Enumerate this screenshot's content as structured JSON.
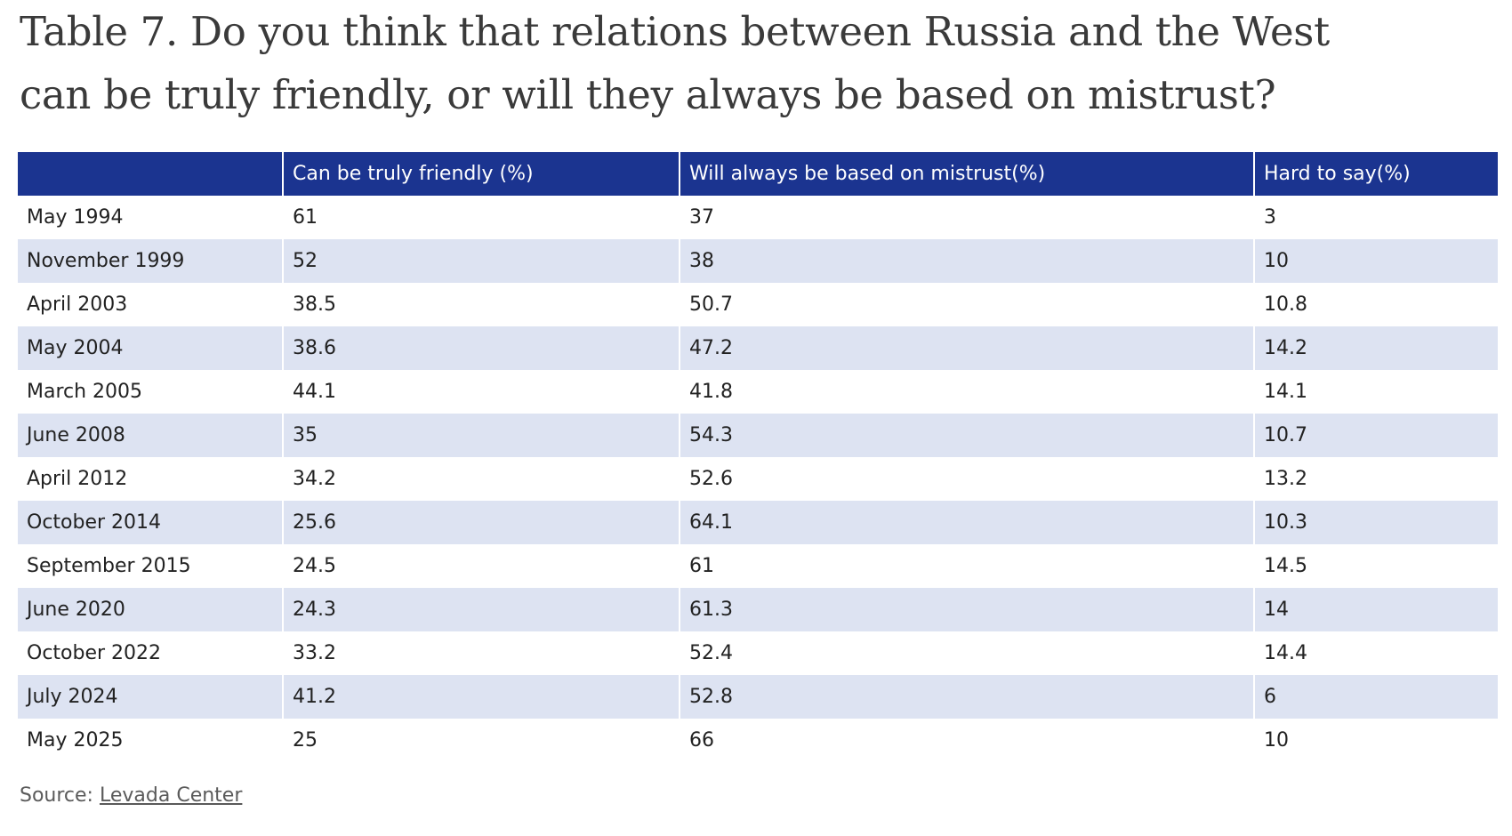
{
  "chart_data": {
    "type": "table",
    "title_lines": [
      "Table 7. Do you think that relations between Russia and the West",
      "can be truly friendly, or will they always be based on mistrust?"
    ],
    "columns": [
      "",
      "Can be truly friendly (%)",
      "Will always be based on mistrust(%)",
      "Hard to say(%)"
    ],
    "rows": [
      [
        "May 1994",
        "61",
        "37",
        "3"
      ],
      [
        "November 1999",
        "52",
        "38",
        "10"
      ],
      [
        "April 2003",
        "38.5",
        "50.7",
        "10.8"
      ],
      [
        "May 2004",
        "38.6",
        "47.2",
        "14.2"
      ],
      [
        "March 2005",
        "44.1",
        "41.8",
        "14.1"
      ],
      [
        "June 2008",
        "35",
        "54.3",
        "10.7"
      ],
      [
        "April 2012",
        "34.2",
        "52.6",
        "13.2"
      ],
      [
        "October 2014",
        "25.6",
        "64.1",
        "10.3"
      ],
      [
        "September 2015",
        "24.5",
        "61",
        "14.5"
      ],
      [
        "June 2020",
        "24.3",
        "61.3",
        "14"
      ],
      [
        "October 2022",
        "33.2",
        "52.4",
        "14.4"
      ],
      [
        "July 2024",
        "41.2",
        "52.8",
        "6"
      ],
      [
        "May 2025",
        "25",
        "66",
        "10"
      ]
    ],
    "source_prefix": "Source:",
    "source_link": "Levada Center"
  },
  "colors": {
    "header_bg": "#1b3490",
    "header_text": "#ffffff",
    "stripe_bg": "#dde3f2",
    "row_bg": "#ffffff"
  }
}
